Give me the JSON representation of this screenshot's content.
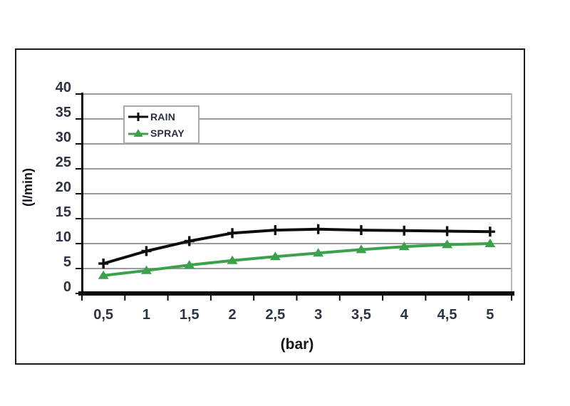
{
  "chart_data": {
    "type": "line",
    "title": "",
    "xlabel": "(bar)",
    "ylabel": "(l/min)",
    "categories": [
      "0,5",
      "1",
      "1,5",
      "2",
      "2,5",
      "3",
      "3,5",
      "4",
      "4,5",
      "5"
    ],
    "y_ticks": [
      0,
      5,
      10,
      15,
      20,
      25,
      30,
      35,
      40
    ],
    "ylim": [
      0,
      40
    ],
    "grid": "horizontal",
    "legend_position": "inside-top-left",
    "series": [
      {
        "name": "RAIN",
        "color": "#0d0d0d",
        "marker": "plus",
        "values": [
          6,
          8.5,
          10.5,
          12.1,
          12.7,
          12.9,
          12.7,
          12.6,
          12.5,
          12.4
        ]
      },
      {
        "name": "SPRAY",
        "color": "#3ba14b",
        "marker": "triangle-up",
        "values": [
          3.6,
          4.6,
          5.7,
          6.6,
          7.4,
          8.1,
          8.8,
          9.4,
          9.8,
          10
        ]
      }
    ],
    "colors": {
      "gridline": "#9b9b9b",
      "axis": "#0b0b0b",
      "plot_right_border": "#b8b8b8",
      "tick_text": "#2d3340"
    }
  }
}
